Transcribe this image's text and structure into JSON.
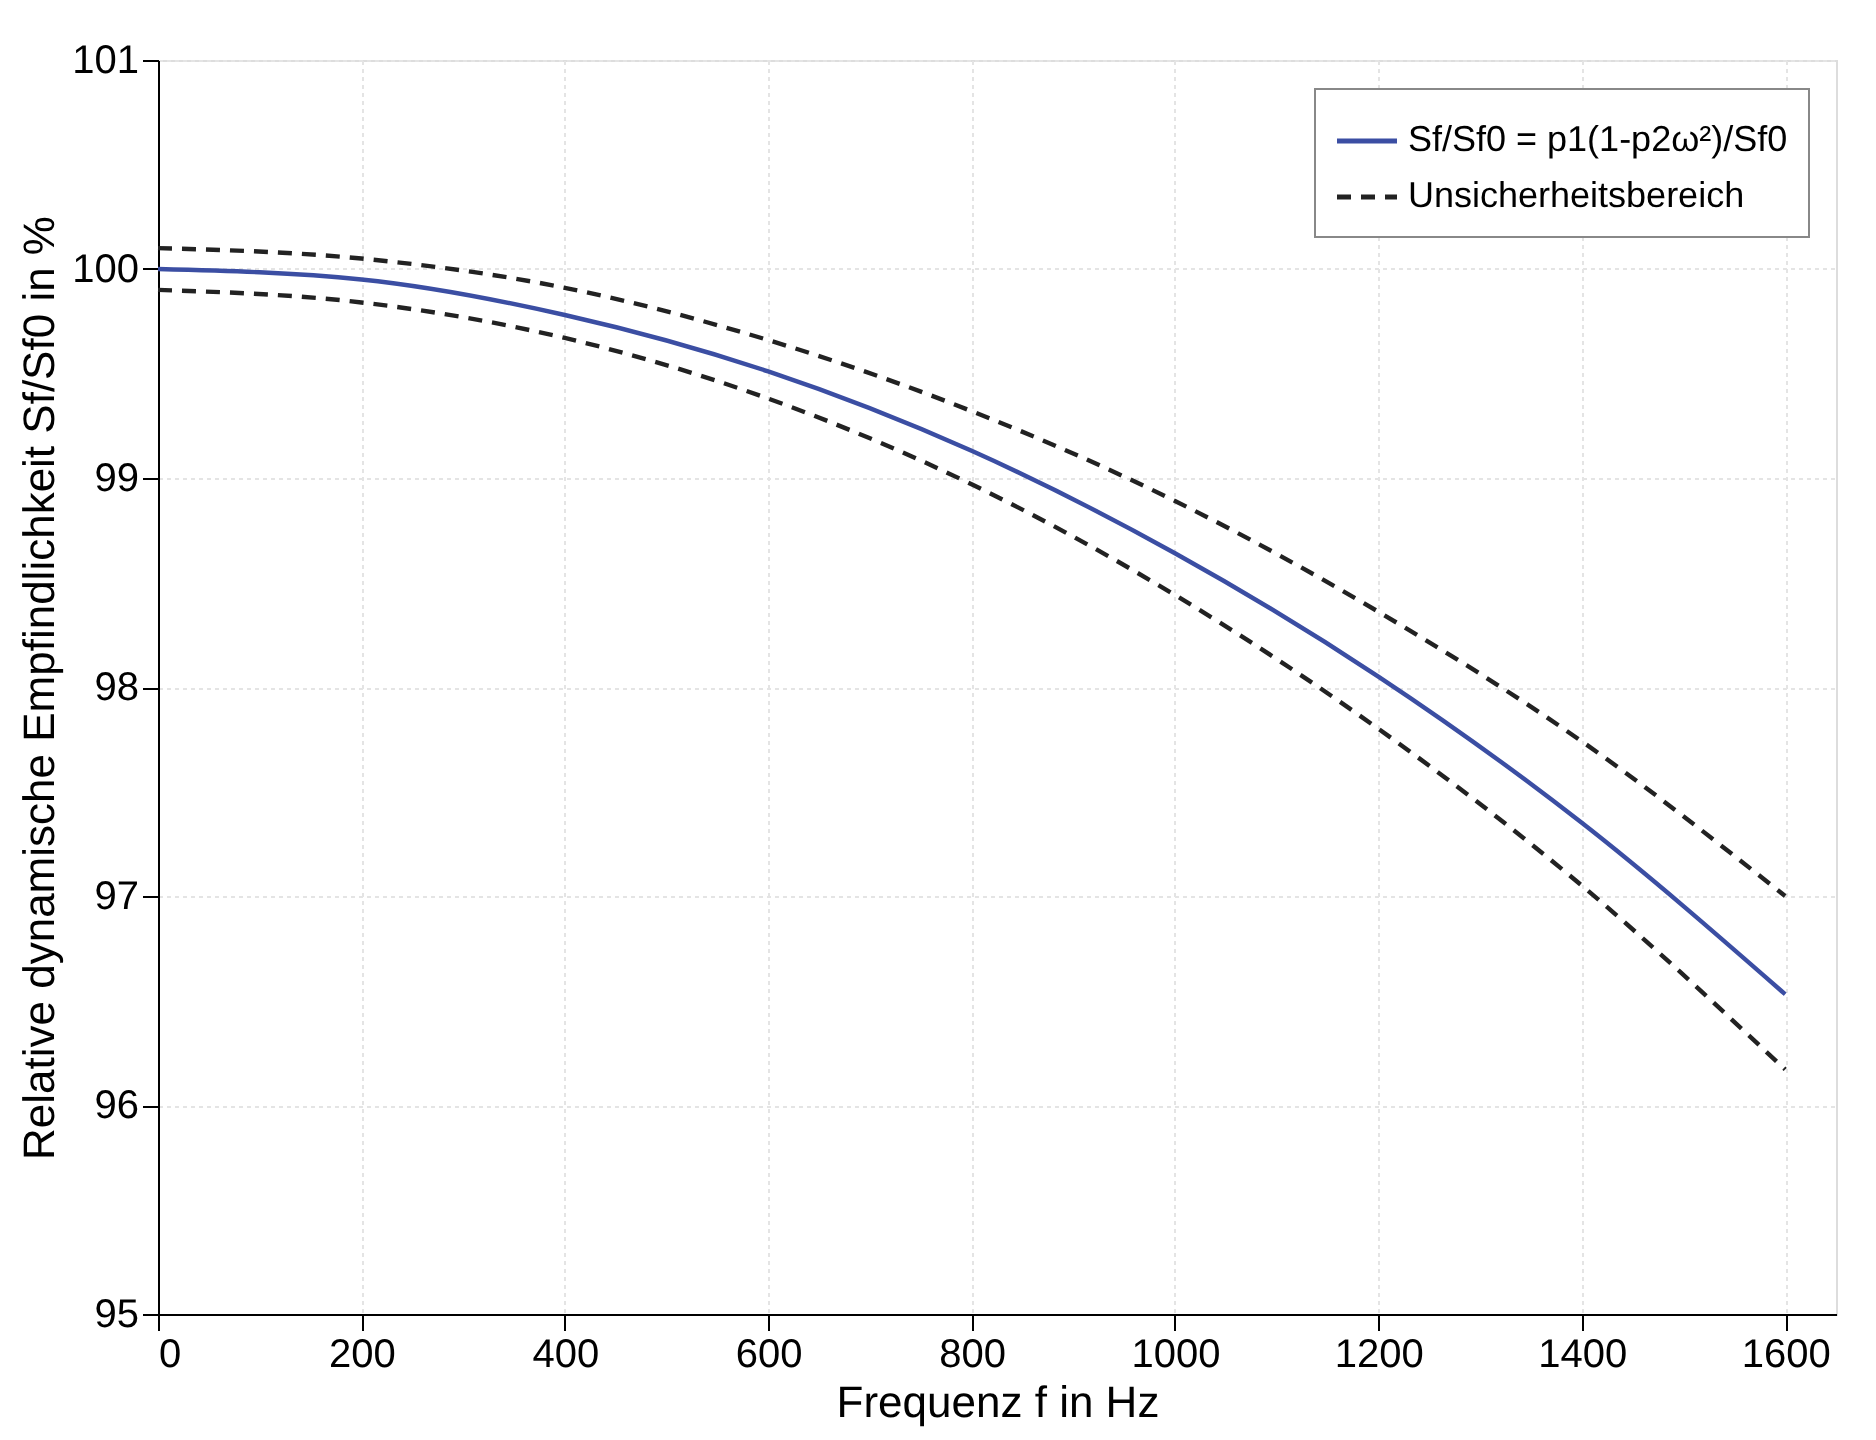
{
  "chart_data": {
    "type": "line",
    "xlabel": "Frequenz f in Hz",
    "ylabel": "Relative dynamische Empfindlichkeit Sf/Sf0 in %",
    "x": [
      0,
      200,
      400,
      600,
      800,
      1000,
      1200,
      1400,
      1600
    ],
    "series": [
      {
        "name": "Sf/Sf0 = p1(1-p2ω²)/Sf0",
        "color": "#3b4ea3",
        "line_style": "solid",
        "values": [
          100,
          99.95,
          99.78,
          99.51,
          99.13,
          98.64,
          98.05,
          97.35,
          96.53
        ]
      },
      {
        "name": "Unsicherheitsbereich",
        "color": "#222222",
        "line_style": "dashed",
        "values": [
          100.1,
          100.05,
          99.91,
          99.66,
          99.32,
          98.89,
          98.36,
          97.74,
          97.0
        ]
      },
      {
        "color": "#222222",
        "line_style": "dashed",
        "values": [
          99.9,
          99.84,
          99.67,
          99.38,
          98.97,
          98.44,
          97.8,
          97.05,
          96.17
        ]
      }
    ],
    "xlim": [
      0,
      1650
    ],
    "ylim": [
      95,
      101
    ],
    "xticks": [
      0,
      200,
      400,
      600,
      800,
      1000,
      1200,
      1400,
      1600
    ],
    "yticks": [
      95,
      96,
      97,
      98,
      99,
      100,
      101
    ],
    "grid": true,
    "legend": "top right",
    "marker": "none"
  }
}
